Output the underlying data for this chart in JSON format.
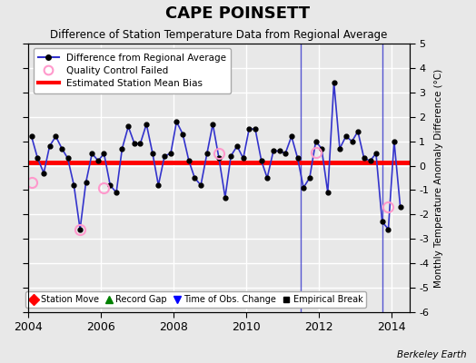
{
  "title": "CAPE POINSETT",
  "subtitle": "Difference of Station Temperature Data from Regional Average",
  "ylabel": "Monthly Temperature Anomaly Difference (°C)",
  "xlabel_bottom": "Berkeley Earth",
  "ylim": [
    -6,
    5
  ],
  "xlim": [
    2004.0,
    2014.5
  ],
  "bias_value": 0.15,
  "background_color": "#e8e8e8",
  "grid_color": "white",
  "line_color": "#3333cc",
  "marker_color": "black",
  "bias_color": "red",
  "qc_color": "#ff99cc",
  "vertical_line_x": [
    2011.5,
    2013.75
  ],
  "time_series_x": [
    2004.08,
    2004.25,
    2004.42,
    2004.58,
    2004.75,
    2004.92,
    2005.08,
    2005.25,
    2005.42,
    2005.58,
    2005.75,
    2005.92,
    2006.08,
    2006.25,
    2006.42,
    2006.58,
    2006.75,
    2006.92,
    2007.08,
    2007.25,
    2007.42,
    2007.58,
    2007.75,
    2007.92,
    2008.08,
    2008.25,
    2008.42,
    2008.58,
    2008.75,
    2008.92,
    2009.08,
    2009.25,
    2009.42,
    2009.58,
    2009.75,
    2009.92,
    2010.08,
    2010.25,
    2010.42,
    2010.58,
    2010.75,
    2010.92,
    2011.08,
    2011.25,
    2011.42,
    2011.58,
    2011.75,
    2011.92,
    2012.08,
    2012.25,
    2012.42,
    2012.58,
    2012.75,
    2012.92,
    2013.08,
    2013.25,
    2013.42,
    2013.58,
    2013.75,
    2013.92,
    2014.08,
    2014.25
  ],
  "time_series_y": [
    1.2,
    0.3,
    -0.3,
    0.8,
    1.2,
    0.7,
    0.3,
    -0.8,
    -2.6,
    -0.7,
    0.5,
    0.2,
    0.5,
    -0.8,
    -1.1,
    0.7,
    1.6,
    0.9,
    0.9,
    1.7,
    0.5,
    -0.8,
    0.4,
    0.5,
    1.8,
    1.3,
    0.2,
    -0.5,
    -0.8,
    0.5,
    1.7,
    0.3,
    -1.3,
    0.4,
    0.8,
    0.3,
    1.5,
    1.5,
    0.2,
    -0.5,
    0.6,
    0.6,
    0.5,
    1.2,
    0.3,
    -0.9,
    -0.5,
    1.0,
    0.7,
    -1.1,
    3.4,
    0.7,
    1.2,
    1.0,
    1.4,
    0.3,
    0.2,
    0.5,
    -2.3,
    -2.6,
    1.0,
    -1.7
  ],
  "qc_failed": [
    [
      2004.08,
      -0.7
    ],
    [
      2005.42,
      -2.6
    ],
    [
      2006.08,
      -0.9
    ],
    [
      2009.25,
      0.5
    ],
    [
      2011.92,
      0.55
    ],
    [
      2013.92,
      -1.7
    ]
  ],
  "xticks": [
    2004,
    2006,
    2008,
    2010,
    2012,
    2014
  ],
  "yticks": [
    -6,
    -5,
    -4,
    -3,
    -2,
    -1,
    0,
    1,
    2,
    3,
    4,
    5
  ]
}
